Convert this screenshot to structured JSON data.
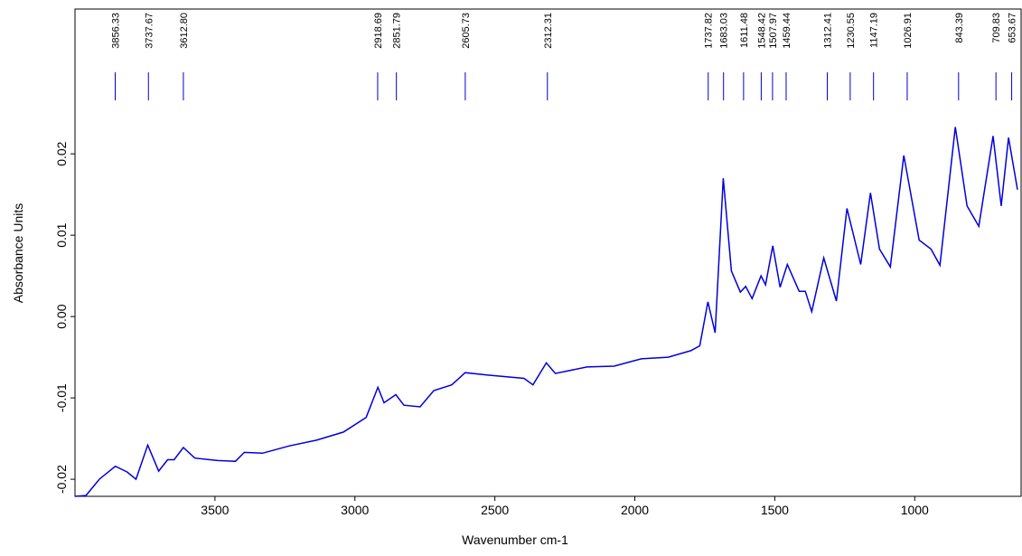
{
  "chart_data": {
    "type": "line",
    "color": "#0000dd",
    "x_label": "Wavenumber cm-1",
    "y_label": "Absorbance Units",
    "xlim": [
      4000,
      620
    ],
    "ylim": [
      -0.0221,
      0.0378
    ],
    "reverse_x": true,
    "xticks": [
      3500,
      3000,
      2500,
      2000,
      1500,
      1000
    ],
    "yticks": [
      {
        "value": -0.02,
        "label": "-0.02"
      },
      {
        "value": -0.01,
        "label": "-0.01"
      },
      {
        "value": 0,
        "label": "0.00"
      },
      {
        "value": 0.01,
        "label": "0.01"
      },
      {
        "value": 0.02,
        "label": "0.02"
      }
    ],
    "peaks": [
      3856.33,
      3737.67,
      {
        "value": 3612.8,
        "label": "3612.80"
      },
      2918.69,
      2851.79,
      2605.73,
      2312.31,
      1737.82,
      1683.03,
      1611.48,
      1548.42,
      1507.97,
      1459.44,
      1312.41,
      1230.55,
      1147.19,
      1026.91,
      843.39,
      709.83,
      653.67
    ],
    "x": [
      4000,
      3961,
      3913,
      3856,
      3814,
      3782,
      3740,
      3701,
      3669,
      3646,
      3613,
      3572,
      3491,
      3427,
      3395,
      3330,
      3234,
      3137,
      3041,
      2960,
      2918,
      2896,
      2854,
      2825,
      2767,
      2718,
      2654,
      2606,
      2525,
      2396,
      2364,
      2316,
      2284,
      2171,
      2074,
      1977,
      1881,
      1800,
      1768,
      1739,
      1713,
      1684,
      1655,
      1623,
      1604,
      1581,
      1549,
      1533,
      1507,
      1481,
      1455,
      1413,
      1391,
      1368,
      1325,
      1280,
      1242,
      1193,
      1158,
      1126,
      1087,
      1039,
      984,
      942,
      910,
      855,
      813,
      771,
      720,
      691,
      665,
      633
    ],
    "values": [
      -0.0221,
      -0.022,
      -0.02,
      -0.0184,
      -0.0191,
      -0.02,
      -0.0158,
      -0.019,
      -0.0176,
      -0.0176,
      -0.0161,
      -0.0174,
      -0.0177,
      -0.0178,
      -0.0167,
      -0.0168,
      -0.0159,
      -0.0152,
      -0.0142,
      -0.0124,
      -0.0087,
      -0.0106,
      -0.0096,
      -0.0109,
      -0.0111,
      -0.0091,
      -0.0084,
      -0.0069,
      -0.0072,
      -0.0076,
      -0.0084,
      -0.0057,
      -0.007,
      -0.0062,
      -0.0061,
      -0.0052,
      -0.005,
      -0.0042,
      -0.0036,
      0.0018,
      -0.002,
      0.017,
      0.0056,
      0.003,
      0.0037,
      0.0022,
      0.005,
      0.0039,
      0.0087,
      0.0036,
      0.0064,
      0.0031,
      0.0031,
      0.0006,
      0.0072,
      0.0019,
      0.0133,
      0.0064,
      0.0152,
      0.0083,
      0.0061,
      0.0198,
      0.0094,
      0.0083,
      0.0063,
      0.0233,
      0.0136,
      0.0111,
      0.0222,
      0.0136,
      0.022,
      0.0156
    ]
  }
}
